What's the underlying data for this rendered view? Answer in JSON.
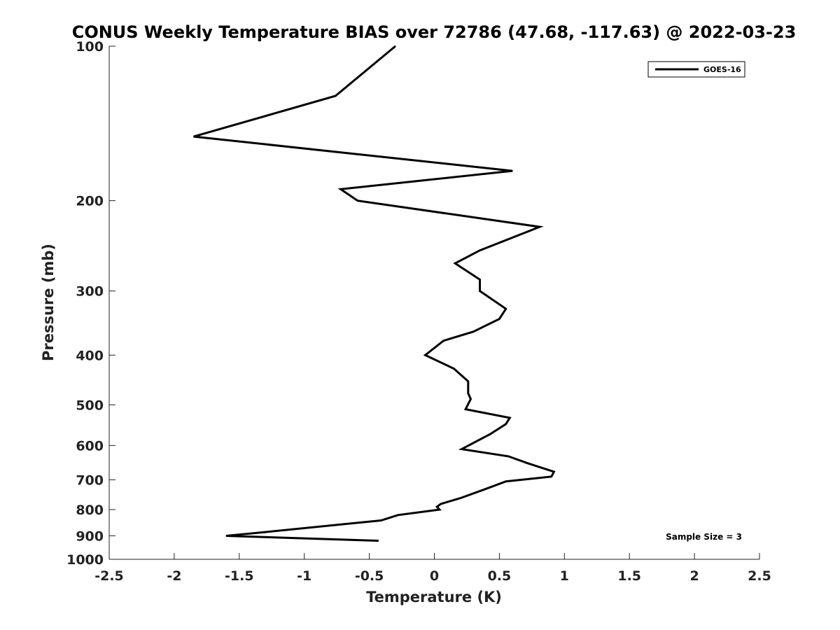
{
  "chart_data": {
    "type": "line",
    "title": "CONUS Weekly Temperature BIAS over 72786 (47.68, -117.63) @ 2022-03-23",
    "xlabel": "Temperature (K)",
    "ylabel": "Pressure (mb)",
    "xlim": [
      -2.5,
      2.5
    ],
    "ylim": [
      100,
      1000
    ],
    "y_scale": "log",
    "y_reversed": true,
    "x_ticks": [
      -2.5,
      -2,
      -1.5,
      -1,
      -0.5,
      0,
      0.5,
      1,
      1.5,
      2,
      2.5
    ],
    "x_tick_labels": [
      "-2.5",
      "-2",
      "-1.5",
      "-1",
      "-0.5",
      "0",
      "0.5",
      "1",
      "1.5",
      "2",
      "2.5"
    ],
    "y_ticks": [
      100,
      200,
      300,
      400,
      500,
      600,
      700,
      800,
      900,
      1000
    ],
    "y_tick_labels": [
      "100",
      "200",
      "300",
      "400",
      "500",
      "600",
      "700",
      "800",
      "900",
      "1000"
    ],
    "grid": false,
    "legend_position": "top-right",
    "series": [
      {
        "name": "GOES-16",
        "color": "#000000",
        "x": [
          -0.3,
          -0.76,
          -1.85,
          0.6,
          -0.72,
          -0.59,
          0.81,
          0.35,
          0.16,
          0.35,
          0.35,
          0.55,
          0.5,
          0.3,
          0.07,
          -0.07,
          0.15,
          0.26,
          0.26,
          0.28,
          0.24,
          0.58,
          0.55,
          0.43,
          0.21,
          0.57,
          0.72,
          0.92,
          0.9,
          0.55,
          0.39,
          0.2,
          0.05,
          0.02,
          0.04,
          -0.28,
          -0.41,
          -1.3,
          -1.6,
          -0.43
        ],
        "y": [
          100,
          125,
          150,
          175,
          190,
          200,
          225,
          250,
          265,
          285,
          300,
          325,
          340,
          360,
          375,
          400,
          425,
          450,
          475,
          487,
          510,
          530,
          545,
          570,
          610,
          630,
          650,
          675,
          690,
          705,
          730,
          760,
          780,
          790,
          800,
          820,
          840,
          885,
          900,
          920
        ]
      }
    ],
    "annotations": [
      "Sample Size = 3"
    ]
  }
}
